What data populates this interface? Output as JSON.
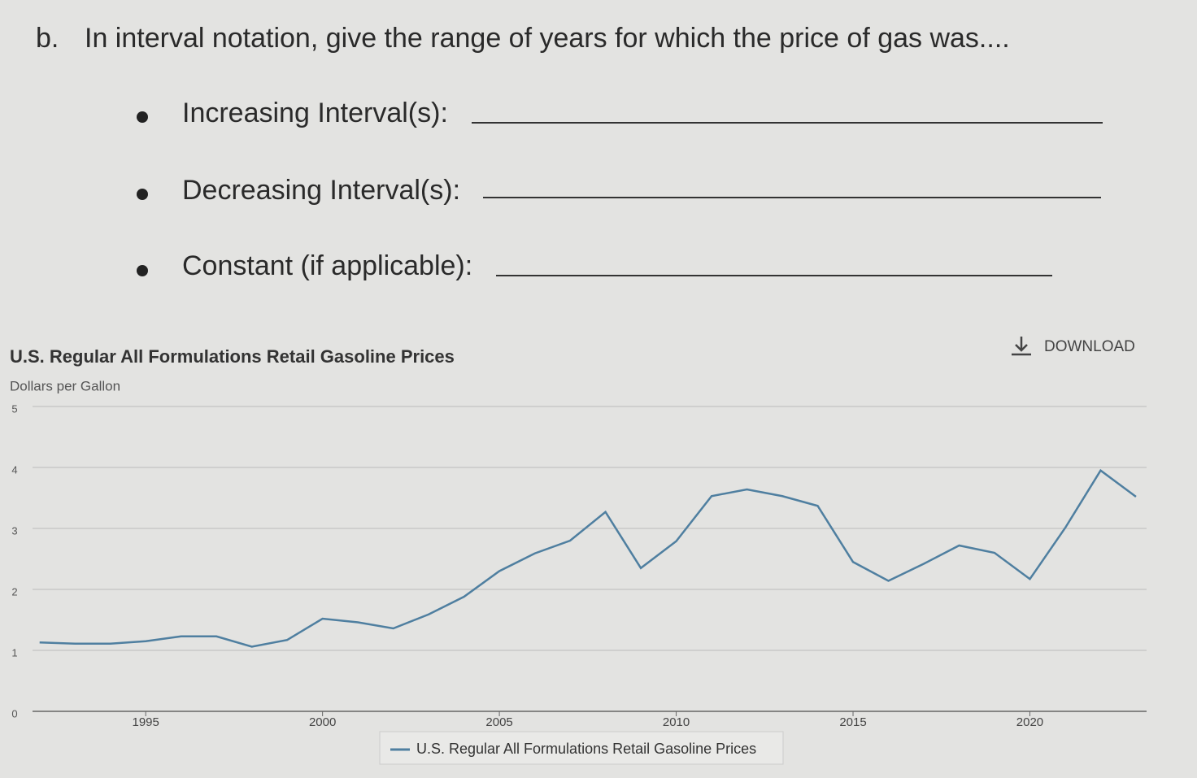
{
  "question": {
    "label": "b.",
    "text": "In interval notation, give the range of years for which the price of gas was....",
    "items": [
      "Increasing Interval(s):",
      "Decreasing Interval(s):",
      "Constant (if applicable):"
    ]
  },
  "chart_data": {
    "type": "line",
    "title": "U.S. Regular All Formulations Retail Gasoline Prices",
    "y_label": "Dollars per Gallon",
    "download": "DOWNLOAD",
    "x": [
      1992,
      1993,
      1994,
      1995,
      1996,
      1997,
      1998,
      1999,
      2000,
      2001,
      2002,
      2003,
      2004,
      2005,
      2006,
      2007,
      2008,
      2009,
      2010,
      2011,
      2012,
      2013,
      2014,
      2015,
      2016,
      2017,
      2018,
      2019,
      2020,
      2021,
      2022,
      2023
    ],
    "series": [
      {
        "name": "U.S. Regular All Formulations Retail Gasoline Prices",
        "color": "#4f7fa0",
        "values": [
          1.13,
          1.11,
          1.11,
          1.15,
          1.23,
          1.23,
          1.06,
          1.17,
          1.52,
          1.46,
          1.36,
          1.59,
          1.88,
          2.3,
          2.59,
          2.8,
          3.27,
          2.35,
          2.79,
          3.53,
          3.64,
          3.53,
          3.37,
          2.45,
          2.14,
          2.42,
          2.72,
          2.6,
          2.17,
          3.01,
          3.95,
          3.52
        ]
      }
    ],
    "xlim": [
      1991.8,
      2023.3
    ],
    "xticks": [
      1995,
      2000,
      2005,
      2010,
      2015,
      2020
    ],
    "ylim": [
      0,
      5
    ],
    "yticks": [
      0,
      1,
      2,
      3,
      4,
      5
    ],
    "grid": true
  }
}
